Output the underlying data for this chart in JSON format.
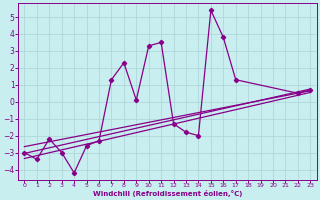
{
  "xlabel": "Windchill (Refroidissement éolien,°C)",
  "background_color": "#c8eef0",
  "grid_color": "#b0d8da",
  "line_color": "#880088",
  "xlim_min": -0.5,
  "xlim_max": 23.5,
  "ylim_min": -4.6,
  "ylim_max": 5.8,
  "yticks": [
    -4,
    -3,
    -2,
    -1,
    0,
    1,
    2,
    3,
    4,
    5
  ],
  "xticks": [
    0,
    1,
    2,
    3,
    4,
    5,
    6,
    7,
    8,
    9,
    10,
    11,
    12,
    13,
    14,
    15,
    16,
    17,
    18,
    19,
    20,
    21,
    22,
    23
  ],
  "zigzag_x": [
    0,
    1,
    2,
    3,
    4,
    5,
    6,
    7,
    8,
    9,
    10,
    11,
    12,
    13,
    14,
    15,
    16,
    17,
    22,
    23
  ],
  "zigzag_y": [
    -3.0,
    -3.4,
    -2.2,
    -3.0,
    -4.2,
    -2.6,
    -2.3,
    1.3,
    2.3,
    0.1,
    3.3,
    3.5,
    -1.3,
    -1.8,
    -2.0,
    5.4,
    3.8,
    1.3,
    0.5,
    0.7
  ],
  "trend1_x": [
    0,
    23
  ],
  "trend1_y": [
    -3.05,
    0.75
  ],
  "trend2_x": [
    0,
    23
  ],
  "trend2_y": [
    -2.65,
    0.65
  ],
  "trend3_x": [
    0,
    23
  ],
  "trend3_y": [
    -3.35,
    0.55
  ]
}
